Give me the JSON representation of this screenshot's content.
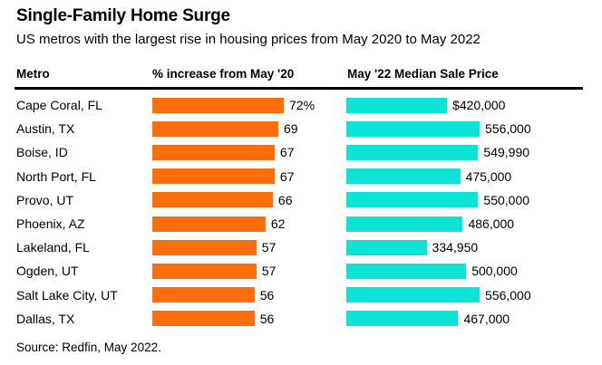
{
  "header": {
    "title": "Single-Family Home Surge",
    "subtitle": "US metros with the largest rise in housing prices from May 2020 to May 2022"
  },
  "table": {
    "col_metro": "Metro",
    "col_increase": "% increase from May '20",
    "col_price": "May '22 Median Sale Price"
  },
  "footer": {
    "source": "Source: Redfin, May 2022."
  },
  "colors": {
    "increase_bar": "#FC6E0B",
    "price_bar": "#0DE3D6",
    "text": "#000000",
    "rule": "#000000",
    "background": "#FFFFFF"
  },
  "chart_data": {
    "type": "bar",
    "title": "Single-Family Home Surge",
    "subtitle": "US metros with the largest rise in housing prices from May 2020 to May 2022",
    "source": "Source: Redfin, May 2022.",
    "grid": false,
    "legend_position": "none",
    "orientation": "horizontal",
    "columns": [
      "Metro",
      "% increase from May '20",
      "May '22 Median Sale Price"
    ],
    "categories": [
      "Cape Coral, FL",
      "Austin, TX",
      "Boise, ID",
      "North Port, FL",
      "Provo, UT",
      "Phoenix, AZ",
      "Lakeland, FL",
      "Ogden, UT",
      "Salt Lake City, UT",
      "Dallas, TX"
    ],
    "series": [
      {
        "name": "% increase from May '20",
        "type": "bar",
        "color": "#FC6E0B",
        "axis_range": [
          0,
          72
        ],
        "values": [
          72,
          69,
          67,
          67,
          66,
          62,
          57,
          57,
          56,
          56
        ],
        "labels": [
          "72%",
          "69",
          "67",
          "67",
          "66",
          "62",
          "57",
          "57",
          "56",
          "56"
        ]
      },
      {
        "name": "May '22 Median Sale Price",
        "type": "bar",
        "color": "#0DE3D6",
        "axis_range": [
          0,
          556000
        ],
        "values": [
          420000,
          556000,
          549990,
          475000,
          550000,
          486000,
          334950,
          500000,
          556000,
          467000
        ],
        "labels": [
          "$420,000",
          "556,000",
          "549,990",
          "475,000",
          "550,000",
          "486,000",
          "334,950",
          "500,000",
          "556,000",
          "467,000"
        ]
      }
    ]
  }
}
